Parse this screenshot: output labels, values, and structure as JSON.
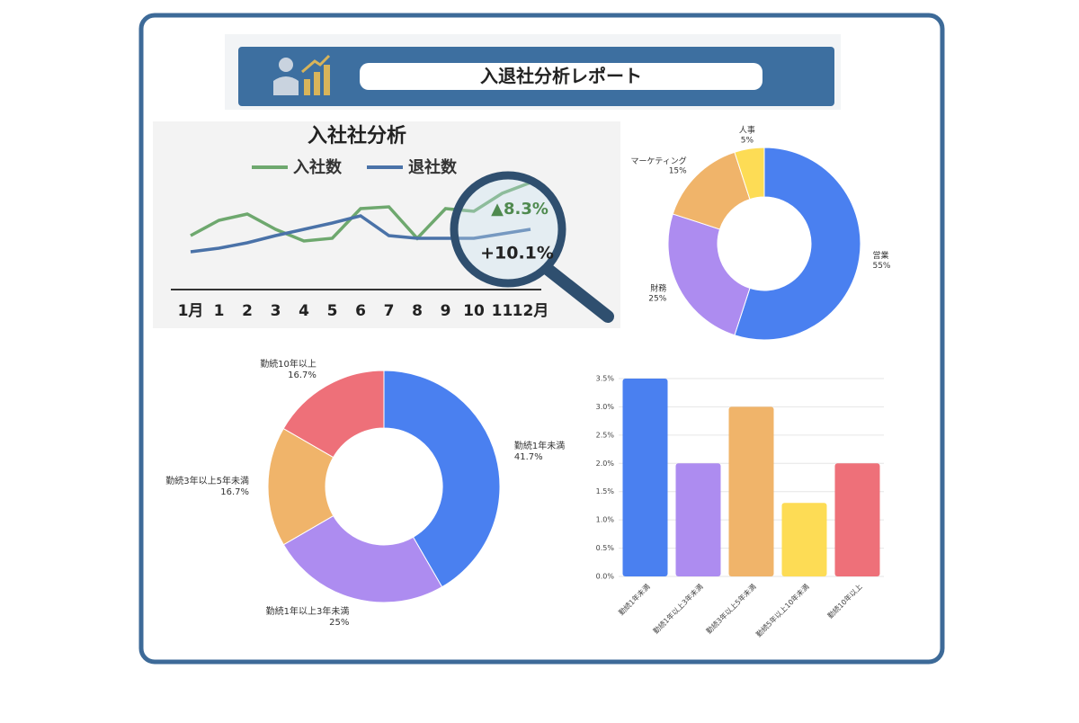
{
  "header": {
    "title": "入退社分析レポート"
  },
  "chart_data": [
    {
      "type": "line",
      "title": "入社社分析",
      "categories": [
        "1月",
        "1",
        "2",
        "3",
        "4",
        "5",
        "6",
        "7",
        "8",
        "9",
        "10",
        "11",
        "12月"
      ],
      "series": [
        {
          "name": "入社数",
          "color": "#6ea86e",
          "values": [
            28,
            45,
            52,
            35,
            22,
            25,
            58,
            60,
            25,
            58,
            55,
            75,
            87
          ]
        },
        {
          "name": "退社数",
          "color": "#4a72a8",
          "values": [
            10,
            14,
            20,
            28,
            35,
            42,
            50,
            28,
            25,
            25,
            25,
            30,
            35
          ]
        }
      ],
      "annotations": [
        "▲8.3%",
        "+10.1%"
      ],
      "ylim": [
        0,
        100
      ]
    },
    {
      "type": "donut",
      "categories": [
        "営業",
        "財務",
        "マーケティング",
        "人事"
      ],
      "values": [
        55,
        25,
        15,
        5
      ],
      "value_labels": [
        "55%",
        "25%",
        "15%",
        "5%"
      ],
      "colors": [
        "#4a80f0",
        "#ad8cf0",
        "#f0b46a",
        "#fddc55"
      ]
    },
    {
      "type": "donut",
      "categories": [
        "勤続1年未満",
        "勤続1年以上3年未満",
        "勤続3年以上5年未満",
        "勤続10年以上"
      ],
      "values": [
        41.7,
        25,
        16.7,
        16.7
      ],
      "value_labels": [
        "41.7%",
        "25%",
        "16.7%",
        "16.7%"
      ],
      "colors": [
        "#4a80f0",
        "#ad8cf0",
        "#f0b46a",
        "#ee7079"
      ]
    },
    {
      "type": "bar",
      "categories": [
        "勤続1年未満",
        "勤続1年以上3年未満",
        "勤続3年以上5年未満",
        "勤続5年以上10年未満",
        "勤続10年以上"
      ],
      "values": [
        3.5,
        2.0,
        3.0,
        1.3,
        2.0
      ],
      "colors": [
        "#4a80f0",
        "#ad8cf0",
        "#f0b46a",
        "#fddc55",
        "#ee7079"
      ],
      "ylim": [
        0,
        3.5
      ],
      "yticks": [
        {
          "value": 0,
          "label": "0.0%"
        },
        {
          "value": 0.5,
          "label": "0.5%"
        },
        {
          "value": 1,
          "label": "1.0%"
        },
        {
          "value": 1.5,
          "label": "1.5%"
        },
        {
          "value": 2,
          "label": "2.0%"
        },
        {
          "value": 2.5,
          "label": "2.5%"
        },
        {
          "value": 3,
          "label": "3.0%"
        },
        {
          "value": 3.5,
          "label": "3.5%"
        }
      ],
      "grid": true
    }
  ]
}
